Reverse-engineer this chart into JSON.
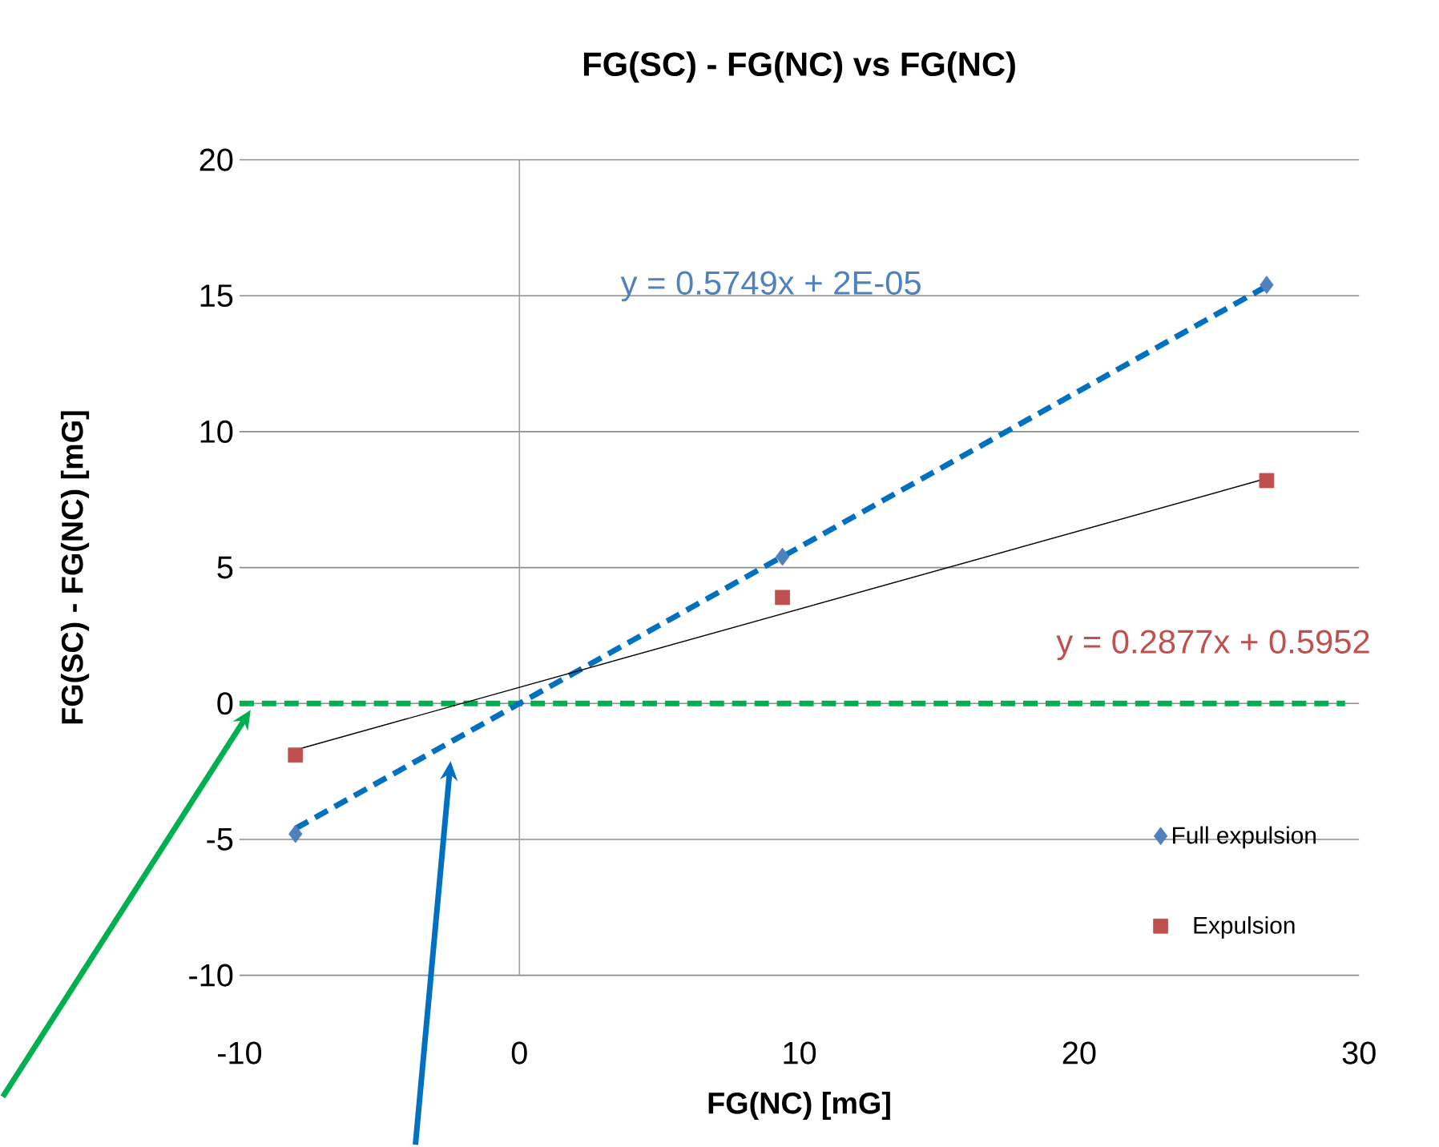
{
  "chart_data": {
    "type": "scatter",
    "title": "FG(SC) - FG(NC) vs FG(NC)",
    "xlabel": "FG(NC) [mG]",
    "ylabel": "FG(SC) - FG(NC) [mG]",
    "xlim": [
      -10,
      30
    ],
    "ylim": [
      -10,
      20
    ],
    "xticks": [
      -10,
      0,
      10,
      20,
      30
    ],
    "yticks": [
      -10,
      -5,
      0,
      5,
      10,
      15,
      20
    ],
    "grid": "y",
    "legend": "bottom right",
    "series": [
      {
        "name": "Full expulsion",
        "marker": "diamond",
        "color": "#4f81bd",
        "x": [
          -8.0,
          9.4,
          26.7
        ],
        "values": [
          -4.8,
          5.4,
          15.4
        ]
      },
      {
        "name": "Expulsion",
        "marker": "square",
        "color": "#c0504d",
        "x": [
          -8.0,
          9.4,
          26.7
        ],
        "values": [
          -1.9,
          3.9,
          8.2
        ]
      },
      {
        "type": "line",
        "line_style": "dashed",
        "color": "#0070c0",
        "x": [
          -8.0,
          26.7
        ],
        "values": [
          -4.6,
          15.35
        ]
      },
      {
        "type": "line",
        "line_style": "solid",
        "color": "#000000",
        "x": [
          -8.0,
          26.7
        ],
        "values": [
          -1.71,
          8.28
        ]
      }
    ],
    "ref_lines": [
      {
        "axis": "x",
        "value": 0,
        "color": "#a0a0a0",
        "line_style": "solid"
      },
      {
        "axis": "y",
        "value": 0,
        "color": "#00b050",
        "line_style": "dashed"
      }
    ],
    "annotations": [
      "y = 0.5749x + 2E-05",
      "y = 0.2877x + 0.5952"
    ]
  }
}
